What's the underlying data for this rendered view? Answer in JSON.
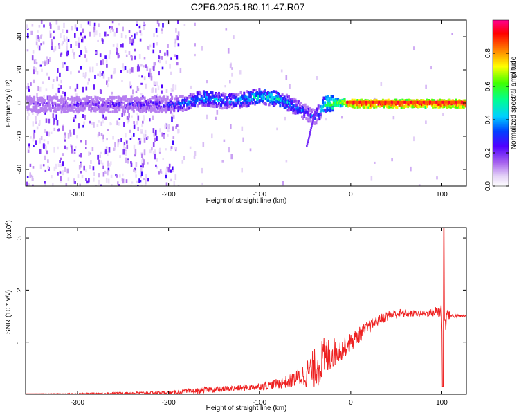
{
  "title": "C2E6.2025.180.11.47.R07",
  "chart_data": [
    {
      "type": "heatmap",
      "description_note": "",
      "xlabel": "Height of straight line (km)",
      "ylabel": "Frequency (Hz)",
      "xlim": [
        -357,
        127
      ],
      "ylim": [
        -50,
        50
      ],
      "x_ticks": [
        -300,
        -200,
        -100,
        0,
        100
      ],
      "x_tick_labels": [
        "-300",
        "-200",
        "-100",
        "0",
        "100"
      ],
      "y_ticks": [
        -40,
        -20,
        0,
        20,
        40
      ],
      "y_tick_labels": [
        "-40",
        "-20",
        "0",
        "20",
        "40"
      ],
      "colorbar": {
        "label": "Normalized spectral amplitude",
        "range": [
          0.0,
          1.0
        ],
        "ticks": [
          0.0,
          0.2,
          0.4,
          0.6,
          0.8
        ],
        "tick_labels": [
          "0.0",
          "0.2",
          "0.4",
          "0.6",
          "0.8"
        ],
        "colors": [
          "#ffffff",
          "#c9a8f0",
          "#8a2be2",
          "#3b00ff",
          "#00c8ff",
          "#00ff40",
          "#ffff00",
          "#ff8000",
          "#ff0000",
          "#ff0090"
        ]
      },
      "ridge": {
        "x": [
          -340,
          -300,
          -250,
          -200,
          -180,
          -170,
          -160,
          -150,
          -140,
          -120,
          -100,
          -90,
          -80,
          -70,
          -60,
          -50,
          -40,
          -30,
          -20,
          -10,
          0,
          50,
          100,
          127
        ],
        "frequency": [
          0,
          0,
          0,
          0,
          1,
          3,
          4,
          3,
          2,
          3,
          5,
          4,
          3,
          1,
          -2,
          -5,
          -8,
          0,
          1,
          1,
          0.5,
          0.5,
          0.5,
          0.5
        ],
        "amplitude": [
          0.15,
          0.18,
          0.2,
          0.25,
          0.35,
          0.4,
          0.4,
          0.38,
          0.35,
          0.38,
          0.45,
          0.45,
          0.45,
          0.4,
          0.35,
          0.3,
          0.3,
          0.5,
          0.6,
          0.7,
          0.9,
          0.9,
          0.9,
          0.9
        ]
      },
      "grid": false
    },
    {
      "type": "line",
      "xlabel": "Height of straight line (km)",
      "ylabel": "SNR (10 * v/v)",
      "y_multiplier_label": "(x10",
      "y_multiplier_exp": "4",
      "y_multiplier_close": ")",
      "xlim": [
        -357,
        127
      ],
      "ylim": [
        0,
        3.2
      ],
      "x_ticks": [
        -300,
        -200,
        -100,
        0,
        100
      ],
      "x_tick_labels": [
        "-300",
        "-200",
        "-100",
        "0",
        "100"
      ],
      "y_ticks": [
        1,
        2,
        3
      ],
      "y_tick_labels": [
        "1",
        "2",
        "3"
      ],
      "color": "#ee2222",
      "series": [
        {
          "x": [
            -357,
            -300,
            -250,
            -200,
            -180,
            -160,
            -140,
            -120,
            -100,
            -90,
            -80,
            -70,
            -60,
            -50,
            -40,
            -30,
            -20,
            -10,
            0,
            10,
            20,
            30,
            40,
            50,
            60,
            70,
            80,
            90,
            100,
            101,
            102,
            103,
            105,
            110,
            120,
            127
          ],
          "y": [
            0.01,
            0.01,
            0.02,
            0.03,
            0.05,
            0.08,
            0.1,
            0.12,
            0.15,
            0.17,
            0.2,
            0.24,
            0.3,
            0.38,
            0.5,
            0.65,
            0.8,
            0.85,
            1.0,
            1.15,
            1.3,
            1.42,
            1.5,
            1.55,
            1.55,
            1.55,
            1.55,
            1.57,
            1.6,
            0.15,
            3.2,
            1.2,
            1.55,
            1.5,
            1.5,
            1.5
          ],
          "noise": [
            0.0,
            0.01,
            0.02,
            0.03,
            0.05,
            0.06,
            0.06,
            0.06,
            0.07,
            0.08,
            0.1,
            0.12,
            0.16,
            0.25,
            0.38,
            0.45,
            0.3,
            0.2,
            0.18,
            0.15,
            0.12,
            0.1,
            0.1,
            0.1,
            0.08,
            0.06,
            0.06,
            0.08,
            0.2,
            0.0,
            0.0,
            0.3,
            0.15,
            0.04,
            0.03,
            0.03
          ]
        }
      ],
      "grid": false
    }
  ]
}
